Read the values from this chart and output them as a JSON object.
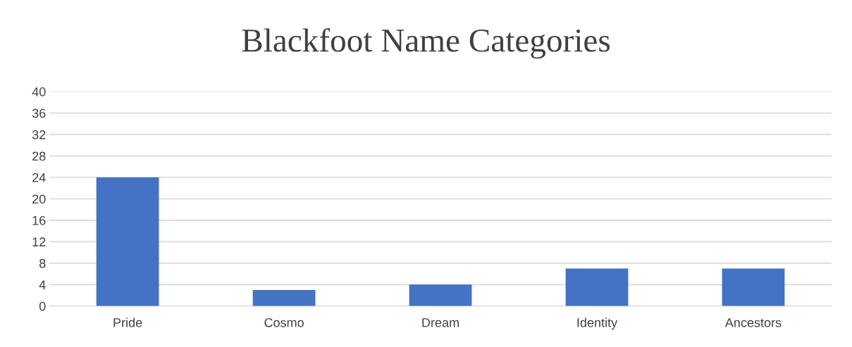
{
  "chart_data": {
    "type": "bar",
    "title": "Blackfoot Name Categories",
    "categories": [
      "Pride",
      "Cosmo",
      "Dream",
      "Identity",
      "Ancestors"
    ],
    "values": [
      24,
      3,
      4,
      7,
      7
    ],
    "color": "#4472c4",
    "ylim": [
      0,
      40
    ],
    "yticks": [
      0,
      4,
      8,
      12,
      16,
      20,
      24,
      28,
      32,
      36,
      40
    ],
    "grid": "y",
    "legend": false
  }
}
